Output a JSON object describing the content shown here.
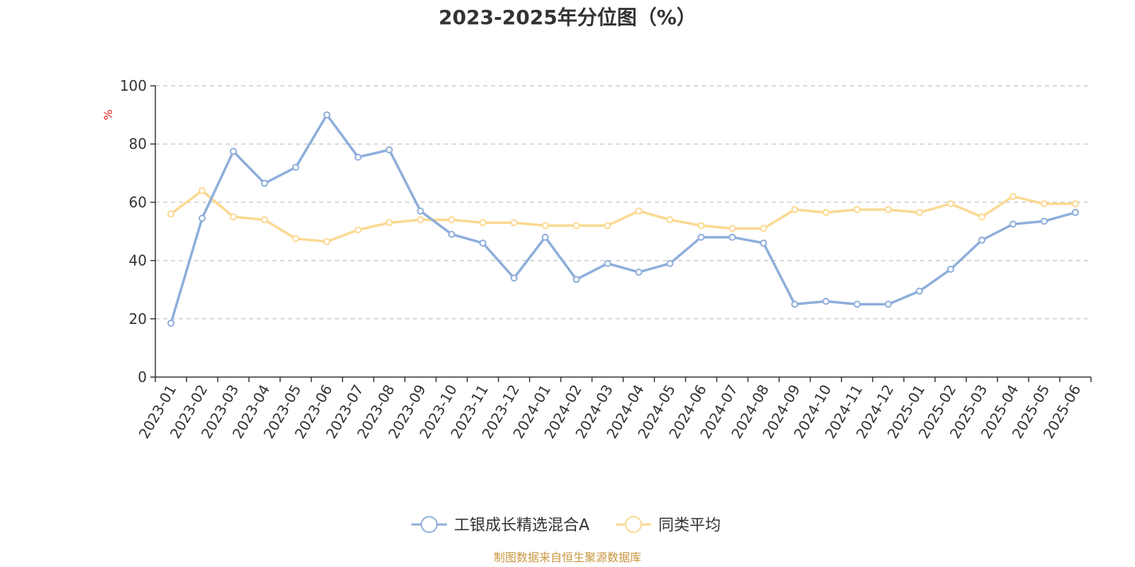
{
  "chart_data": {
    "type": "line",
    "title": "2023-2025年分位图（%）",
    "ylabel": "%",
    "xlabel": "",
    "ylim": [
      0,
      100
    ],
    "yticks": [
      0,
      20,
      40,
      60,
      80,
      100
    ],
    "grid": true,
    "legend_position": "bottom-center",
    "x": [
      "2023-01",
      "2023-02",
      "2023-03",
      "2023-04",
      "2023-05",
      "2023-06",
      "2023-07",
      "2023-08",
      "2023-09",
      "2023-10",
      "2023-11",
      "2023-12",
      "2024-01",
      "2024-02",
      "2024-03",
      "2024-04",
      "2024-05",
      "2024-06",
      "2024-07",
      "2024-08",
      "2024-09",
      "2024-10",
      "2024-11",
      "2024-12",
      "2025-01",
      "2025-02",
      "2025-03",
      "2025-04",
      "2025-05",
      "2025-06"
    ],
    "series": [
      {
        "name": "工银成长精选混合A",
        "color": "#8eaedb",
        "values": [
          18.5,
          54.5,
          77.5,
          66.5,
          72,
          90,
          75.5,
          78,
          57,
          49,
          46,
          34,
          48,
          33.5,
          39,
          36,
          39,
          48,
          48,
          46,
          25,
          26,
          25,
          25,
          29.5,
          37,
          47,
          52.5,
          53.5,
          56.5
        ]
      },
      {
        "name": "同类平均",
        "color": "#fbd992",
        "values": [
          56,
          64,
          55,
          54,
          47.5,
          46.5,
          50.5,
          53,
          54,
          54,
          53,
          53,
          52,
          52,
          52,
          57,
          54,
          52,
          51,
          51,
          57.5,
          56.5,
          57.5,
          57.5,
          56.5,
          59.5,
          55,
          62,
          59.5,
          59.5
        ]
      }
    ],
    "source": "制图数据来自恒生聚源数据库",
    "source_color": "#c8963e",
    "ylabel_color": "#e62020"
  }
}
